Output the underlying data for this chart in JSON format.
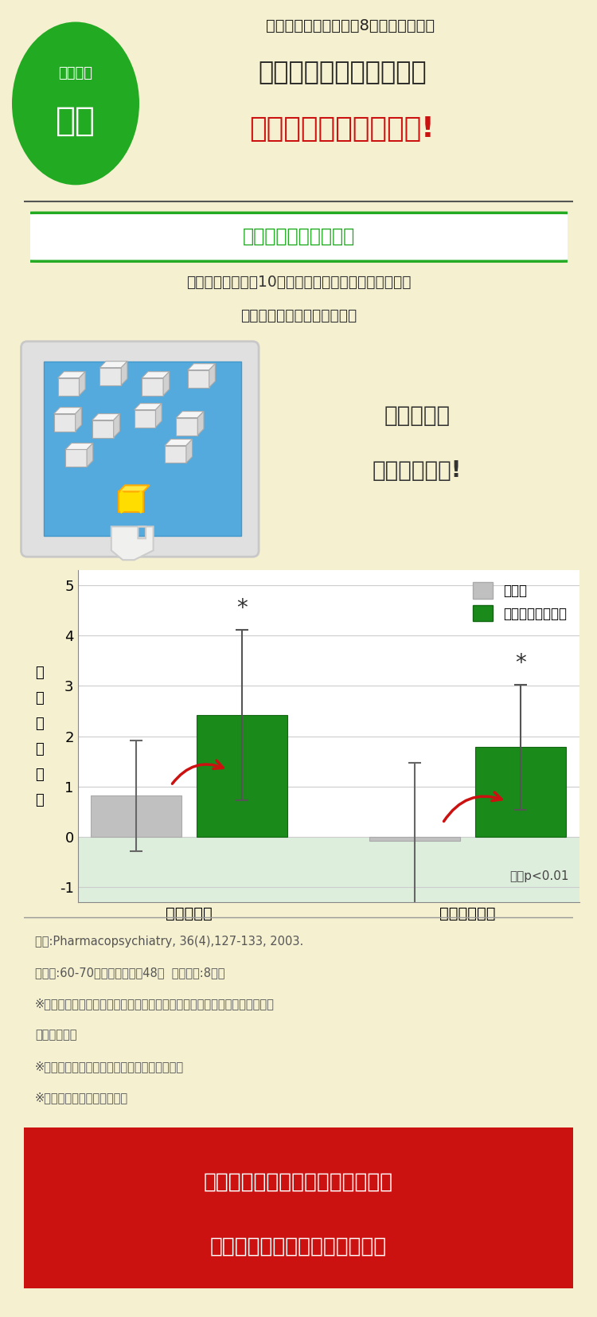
{
  "bg_color": "#f5f0d0",
  "title_line1": "「イチョウ葉エキス」8ヶ月継続摂取で",
  "title_line2": "コルシブロックテストの",
  "title_line3": "正答数が増加しました!",
  "badge_text1": "データで",
  "badge_text2": "実証",
  "badge_color": "#22aa22",
  "section_title": "コルシブロックテスト",
  "section_border_color": "#22aa22",
  "desc_line1": "映像に表示される10の立方体が光った順番を記憶し、",
  "desc_line2": "その順番を解答するテスト。",
  "touch_text_line1": "光った順を",
  "touch_text_line2": "覚えてタッチ!",
  "categories": [
    "順番どおり",
    "逆からの順番"
  ],
  "control_values": [
    0.82,
    -0.08
  ],
  "ginkgo_values": [
    2.42,
    1.78
  ],
  "control_errors": [
    1.1,
    1.55
  ],
  "ginkgo_errors": [
    1.7,
    1.25
  ],
  "control_color": "#c0c0c0",
  "ginkgo_color": "#1a8a1a",
  "ylabel": "正\n答\n数\nの\n変\n化",
  "ylim": [
    -1.3,
    5.3
  ],
  "yticks": [
    -1,
    0,
    1,
    2,
    3,
    4,
    5
  ],
  "legend_control": "対照品",
  "legend_ginkgo": "イチョウ葉エキス",
  "significance_note": "＊：p<0.01",
  "chart_bg_negative": "#ddeedd",
  "source_lines": [
    "出典:Pharmacopsychiatry, 36(4),127-133, 2003.",
    "対象者:60-70歳の健康な男性48人  摂取期間:8ヶ月",
    "※研究レビューの対象となった論文のうち、代表的な一報を事例として提示",
    "しています。",
    "※実際の実験内容と上記の問題は異なります。",
    "※イラストはイメージです。"
  ],
  "footer_bg": "#cc1111",
  "footer_line1": "「イチョウ葉エキス」摂取により",
  "footer_line2": "空間を把握し記憶する力が改善",
  "footer_text_color": "#ffffff",
  "title_color_normal": "#222222",
  "title_color_red": "#cc1111",
  "separator_color": "#555555",
  "asterisk_color": "#333333"
}
